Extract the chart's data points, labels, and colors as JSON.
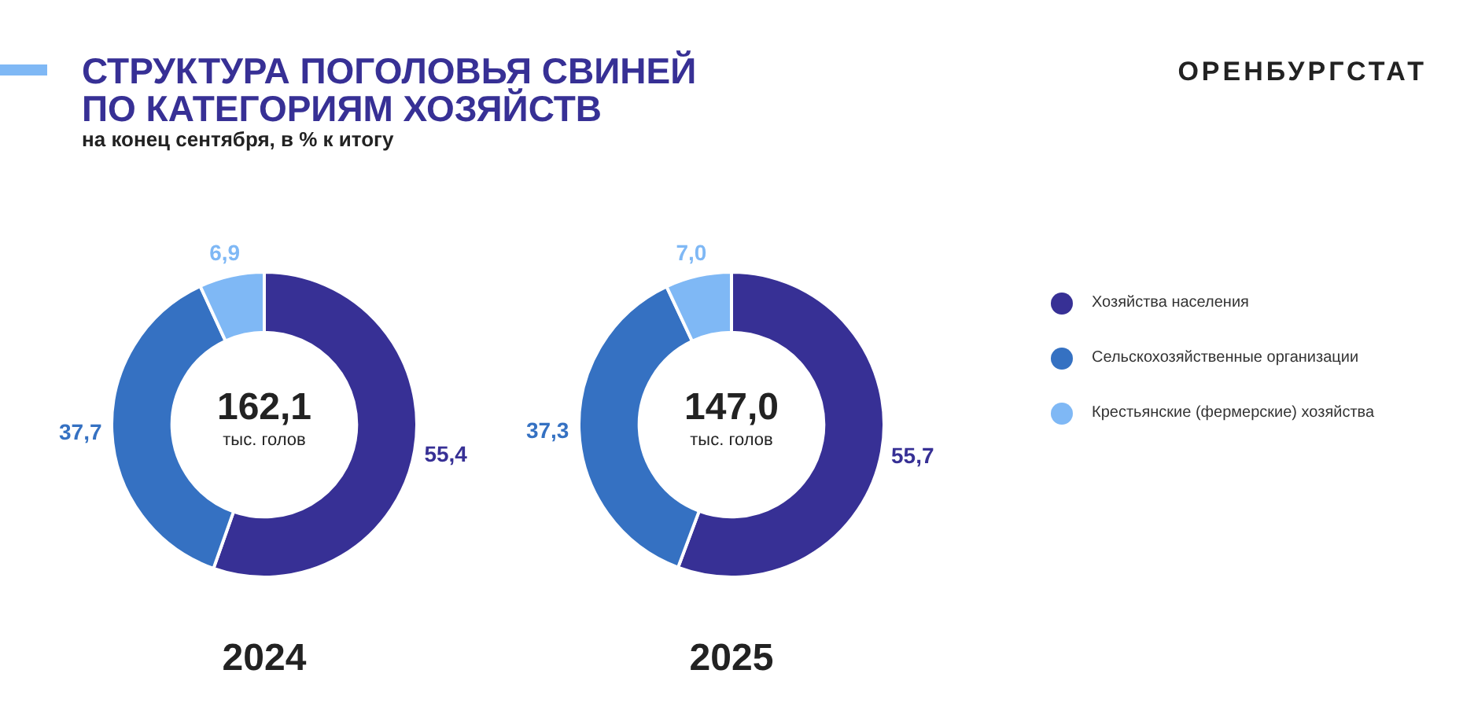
{
  "chart_data": [
    {
      "type": "donut",
      "title": "СТРУКТУРА ПОГОЛОВЬЯ СВИНЕЙ ПО КАТЕГОРИЯМ ХОЗЯЙСТВ",
      "subtitle": "на конец сентября, в % к итогу",
      "xlabel": "2024",
      "categories": [
        "Хозяйства населения",
        "Сельскохозяйственные организации",
        "Крестьянские (фермерские) хозяйства"
      ],
      "values": [
        55.4,
        37.7,
        6.9
      ],
      "value_labels": [
        "55,4",
        "37,7",
        "6,9"
      ],
      "colors": [
        "#373095",
        "#3571c2",
        "#7fb8f5"
      ],
      "annotations": [
        "162,1",
        "тыс. голов",
        "ОРЕНБУРГСТАТ"
      ],
      "legend": "right"
    },
    {
      "type": "donut",
      "xlabel": "2025",
      "categories": [
        null,
        null,
        null
      ],
      "values": [
        55.7,
        37.3,
        7.0
      ],
      "value_labels": [
        "55,7",
        "37,3",
        "7,0"
      ],
      "colors": [
        "#373095",
        "#3571c2",
        "#7fb8f5"
      ],
      "annotations": [
        "147,0",
        "тыс. голов"
      ],
      "legend": false
    }
  ]
}
